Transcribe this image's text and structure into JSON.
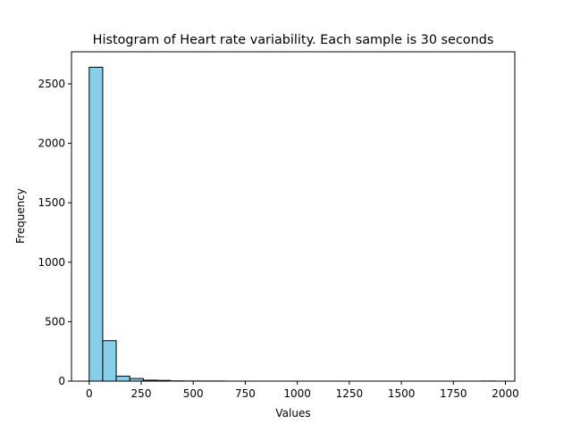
{
  "chart_data": {
    "type": "bar",
    "title": "Histogram of Heart rate variability. Each sample is 30 seconds",
    "xlabel": "Values",
    "ylabel": "Frequency",
    "xlim": [
      -85,
      2045
    ],
    "ylim": [
      0,
      2770
    ],
    "xticks": [
      0,
      250,
      500,
      750,
      1000,
      1250,
      1500,
      1750,
      2000
    ],
    "yticks": [
      0,
      500,
      1000,
      1500,
      2000,
      2500
    ],
    "bin_edges": [
      0,
      65,
      130,
      195,
      260,
      325,
      390,
      455,
      520,
      585,
      650,
      715,
      780,
      845,
      910,
      975,
      1040,
      1105,
      1170,
      1235,
      1300,
      1365,
      1430,
      1495,
      1560,
      1625,
      1690,
      1755,
      1820,
      1885,
      1950
    ],
    "values": [
      2640,
      340,
      42,
      22,
      8,
      6,
      2,
      1,
      1,
      1,
      0,
      0,
      0,
      0,
      0,
      0,
      0,
      0,
      0,
      0,
      0,
      0,
      0,
      0,
      0,
      0,
      0,
      0,
      0,
      1
    ],
    "grid": false,
    "bar_color": "#87ceeb",
    "edge_color": "#000000"
  }
}
